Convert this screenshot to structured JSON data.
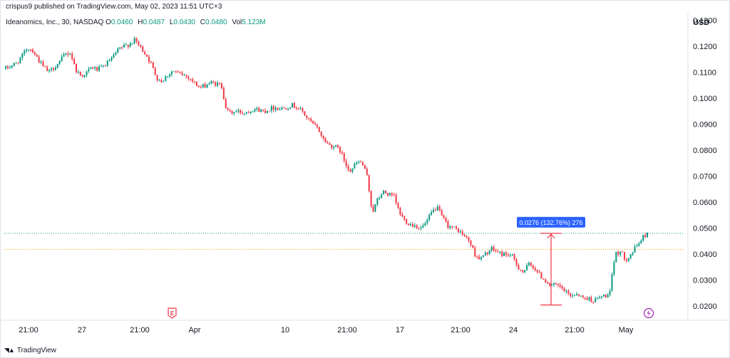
{
  "header": {
    "published_by": "crispus9 published on TradingView.com, May 02, 2023 11:51 UTC+3"
  },
  "legend": {
    "symbol": "Ideanomics, Inc., 30, NASDAQ",
    "open_label": "O",
    "open": "0.0460",
    "high_label": "H",
    "high": "0.0487",
    "low_label": "L",
    "low": "0.0430",
    "close_label": "C",
    "close": "0.0480",
    "vol_label": "Vol",
    "vol": "5.123M"
  },
  "currency": "USD",
  "branding": {
    "name": "TradingView",
    "icon": "tradingview-logo-icon"
  },
  "colors": {
    "up": "#089981",
    "down": "#f23645",
    "grid": "#f0f3fa",
    "measure": "#f23645",
    "measure_label_bg": "#2962ff",
    "hline_green": "#089981",
    "hline_orange": "#ff9800",
    "event_e": "#f23645",
    "event_split": "#9c27b0"
  },
  "annotations": {
    "measure_label": "0.0276 (132.76%) 276",
    "earnings_marker": "E",
    "split_marker_icon": "lightning-icon"
  },
  "chart_data": {
    "type": "candlestick",
    "y_scale": "linear",
    "ylim": [
      0.0145,
      0.131
    ],
    "y_ticks": [
      "0.1300",
      "0.1200",
      "0.1100",
      "0.1000",
      "0.0900",
      "0.0800",
      "0.0700",
      "0.0600",
      "0.0500",
      "0.0400",
      "0.0300",
      "0.0200"
    ],
    "x_ticks": [
      "21:00",
      "27",
      "21:00",
      "Apr",
      "10",
      "21:00",
      "17",
      "21:00",
      "24",
      "21:00",
      "May"
    ],
    "grid": false,
    "horizontal_lines": [
      {
        "value": 0.048,
        "color": "green",
        "style": "dotted"
      },
      {
        "value": 0.0418,
        "color": "orange",
        "style": "dotted"
      }
    ],
    "measure": {
      "from": 0.0204,
      "to": 0.048,
      "change": 0.0276,
      "percent": 132.76,
      "bars": 276
    },
    "path": [
      0.1115,
      0.1125,
      0.1135,
      0.116,
      0.1195,
      0.1185,
      0.115,
      0.112,
      0.11,
      0.112,
      0.114,
      0.117,
      0.1175,
      0.111,
      0.1085,
      0.11,
      0.112,
      0.111,
      0.112,
      0.114,
      0.116,
      0.119,
      0.12,
      0.121,
      0.1225,
      0.1195,
      0.117,
      0.113,
      0.108,
      0.1065,
      0.109,
      0.1105,
      0.1095,
      0.109,
      0.108,
      0.106,
      0.104,
      0.105,
      0.106,
      0.1055,
      0.105,
      0.095,
      0.0945,
      0.095,
      0.0945,
      0.095,
      0.096,
      0.0955,
      0.095,
      0.096,
      0.0965,
      0.096,
      0.0965,
      0.0975,
      0.0965,
      0.095,
      0.092,
      0.09,
      0.088,
      0.084,
      0.082,
      0.0815,
      0.08,
      0.075,
      0.072,
      0.075,
      0.0755,
      0.07,
      0.056,
      0.061,
      0.064,
      0.063,
      0.062,
      0.056,
      0.053,
      0.0515,
      0.051,
      0.05,
      0.052,
      0.056,
      0.058,
      0.054,
      0.051,
      0.05,
      0.049,
      0.047,
      0.045,
      0.04,
      0.038,
      0.04,
      0.042,
      0.041,
      0.04,
      0.04,
      0.039,
      0.035,
      0.033,
      0.036,
      0.035,
      0.032,
      0.03,
      0.028,
      0.028,
      0.027,
      0.025,
      0.024,
      0.025,
      0.023,
      0.023,
      0.022,
      0.023,
      0.024,
      0.024,
      0.04,
      0.041,
      0.038,
      0.04,
      0.043,
      0.046,
      0.048
    ]
  }
}
